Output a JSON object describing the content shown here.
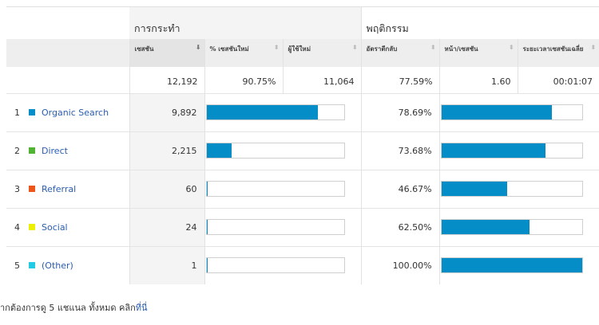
{
  "groups": {
    "acquisition": "การกระทำ",
    "behavior": "พฤติกรรม"
  },
  "columns": {
    "sessions": "เซสชัน",
    "pct_new_sessions": "% เซสชันใหม่",
    "new_users": "ผู้ใช้ใหม่",
    "bounce_rate": "อัตราตีกลับ",
    "pages_per_session": "หน้า/เซสชัน",
    "avg_session_duration": "ระยะเวลาเซสชันเฉลี่ย"
  },
  "totals": {
    "sessions": "12,192",
    "pct_new_sessions": "90.75%",
    "new_users": "11,064",
    "bounce_rate": "77.59%",
    "pages_per_session": "1.60",
    "avg_session_duration": "00:01:07"
  },
  "rows": [
    {
      "index": "1",
      "channel": "Organic Search",
      "color": "#058dc7",
      "sessions": "9,892",
      "sessions_share": 0.8113,
      "bounce_rate": "78.69%",
      "bounce_share": 0.7869
    },
    {
      "index": "2",
      "channel": "Direct",
      "color": "#50b432",
      "sessions": "2,215",
      "sessions_share": 0.1817,
      "bounce_rate": "73.68%",
      "bounce_share": 0.7368
    },
    {
      "index": "3",
      "channel": "Referral",
      "color": "#ed561b",
      "sessions": "60",
      "sessions_share": 0.0049,
      "bounce_rate": "46.67%",
      "bounce_share": 0.4667
    },
    {
      "index": "4",
      "channel": "Social",
      "color": "#edef00",
      "sessions": "24",
      "sessions_share": 0.002,
      "bounce_rate": "62.50%",
      "bounce_share": 0.625
    },
    {
      "index": "5",
      "channel": "(Other)",
      "color": "#24cbe5",
      "sessions": "1",
      "sessions_share": 0.0001,
      "bounce_rate": "100.00%",
      "bounce_share": 1.0
    }
  ],
  "footer": {
    "text": "ากต้องการดู 5 แชแนล ทั้งหมด คลิก",
    "link": "ที่นี่"
  }
}
